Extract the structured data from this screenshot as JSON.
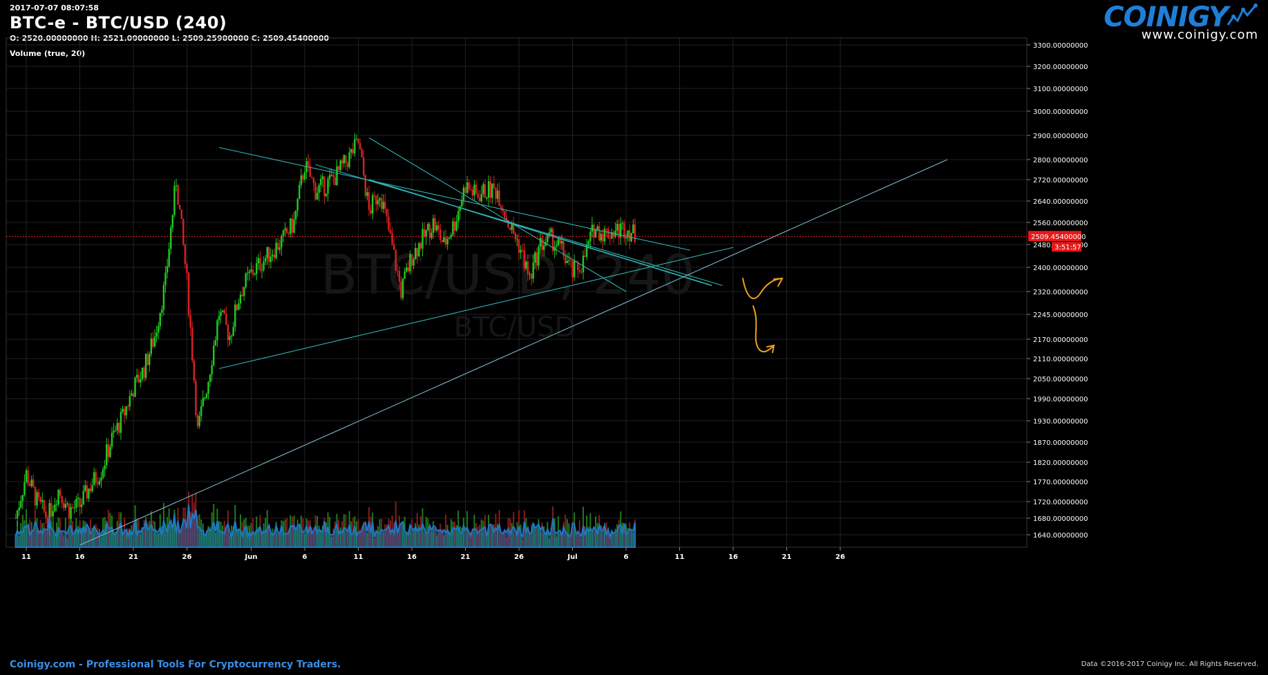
{
  "header": {
    "timestamp": "2017-07-07 08:07:58",
    "title": "BTC-e - BTC/USD (240)",
    "ohlc": "O: 2520.00000000 H: 2521.00000000 L: 2509.25900000 C: 2509.45400000",
    "volume_label": "Volume (true, 20)"
  },
  "logo": {
    "wordmark": "COINIGY",
    "url": "www.coinigy.com"
  },
  "footer": {
    "tagline": "Coinigy.com - Professional Tools For Cryptocurrency Traders.",
    "copyright": "Data ©2016-2017 Coinigy Inc. All Rights Reserved."
  },
  "watermark": {
    "pair_large": "BTC/USD, 240",
    "pair_small": "BTC/USD"
  },
  "price_badge": {
    "value": "2509.45400000",
    "countdown": "3:51:57"
  },
  "colors": {
    "up": "#22cc22",
    "down": "#dd2222",
    "grid": "#222222",
    "trendline": "#2fb5b5",
    "support": "#7fb8cc",
    "price_line": "#ff2222",
    "annotation": "#f0a020",
    "volume_ma": "#1e78c8",
    "brand": "#1e7fd8"
  },
  "chart_data": {
    "type": "candlestick",
    "interval": "240",
    "y_ticks": [
      3300,
      3200,
      3100,
      3000,
      2900,
      2800,
      2720,
      2640,
      2560,
      2480,
      2400,
      2320,
      2245,
      2170,
      2110,
      2050,
      1990,
      1930,
      1870,
      1820,
      1770,
      1720,
      1680,
      1640
    ],
    "x_ticks": [
      "11",
      "16",
      "21",
      "26",
      "Jun",
      "6",
      "11",
      "16",
      "21",
      "26",
      "Jul",
      "6",
      "11",
      "16",
      "21",
      "26"
    ],
    "last_price": 2509.454,
    "close_path": [
      [
        "May 10",
        1680
      ],
      [
        "May 11",
        1790
      ],
      [
        "May 12",
        1720
      ],
      [
        "May 13",
        1680
      ],
      [
        "May 14",
        1750
      ],
      [
        "May 15",
        1700
      ],
      [
        "May 16",
        1710
      ],
      [
        "May 17",
        1760
      ],
      [
        "May 18",
        1800
      ],
      [
        "May 19",
        1880
      ],
      [
        "May 20",
        1940
      ],
      [
        "May 21",
        2020
      ],
      [
        "May 22",
        2080
      ],
      [
        "May 23",
        2180
      ],
      [
        "May 24",
        2350
      ],
      [
        "May 25",
        2720
      ],
      [
        "May 26",
        2350
      ],
      [
        "May 27",
        1900
      ],
      [
        "May 28",
        2050
      ],
      [
        "May 29",
        2250
      ],
      [
        "May 30",
        2180
      ],
      [
        "May 31",
        2320
      ],
      [
        "Jun 1",
        2380
      ],
      [
        "Jun 2",
        2420
      ],
      [
        "Jun 3",
        2460
      ],
      [
        "Jun 4",
        2500
      ],
      [
        "Jun 5",
        2560
      ],
      [
        "Jun 6",
        2780
      ],
      [
        "Jun 7",
        2680
      ],
      [
        "Jun 8",
        2700
      ],
      [
        "Jun 9",
        2740
      ],
      [
        "Jun 10",
        2800
      ],
      [
        "Jun 11",
        2870
      ],
      [
        "Jun 12",
        2600
      ],
      [
        "Jun 13",
        2680
      ],
      [
        "Jun 14",
        2500
      ],
      [
        "Jun 15",
        2320
      ],
      [
        "Jun 16",
        2440
      ],
      [
        "Jun 17",
        2500
      ],
      [
        "Jun 18",
        2560
      ],
      [
        "Jun 19",
        2480
      ],
      [
        "Jun 20",
        2560
      ],
      [
        "Jun 21",
        2700
      ],
      [
        "Jun 22",
        2660
      ],
      [
        "Jun 23",
        2680
      ],
      [
        "Jun 24",
        2680
      ],
      [
        "Jun 25",
        2560
      ],
      [
        "Jun 26",
        2480
      ],
      [
        "Jun 27",
        2360
      ],
      [
        "Jun 28",
        2480
      ],
      [
        "Jun 29",
        2500
      ],
      [
        "Jun 30",
        2460
      ],
      [
        "Jul 1",
        2380
      ],
      [
        "Jul 2",
        2420
      ],
      [
        "Jul 3",
        2540
      ],
      [
        "Jul 4",
        2520
      ],
      [
        "Jul 5",
        2530
      ],
      [
        "Jul 6",
        2540
      ],
      [
        "Jul 7",
        2509
      ]
    ],
    "trendlines": [
      {
        "from": [
          "May 29",
          2850
        ],
        "to": [
          "Jul 12",
          2460
        ]
      },
      {
        "from": [
          "Jun 12",
          2890
        ],
        "to": [
          "Jul 6",
          2320
        ]
      },
      {
        "from": [
          "Jun 12",
          2720
        ],
        "to": [
          "Jul 14",
          2340
        ]
      },
      {
        "from": [
          "Jun 7",
          2780
        ],
        "to": [
          "Jul 15",
          2340
        ]
      },
      {
        "from": [
          "May 29",
          2080
        ],
        "to": [
          "Jul 16",
          2470
        ]
      },
      {
        "from": [
          "May 16",
          1615
        ],
        "to": [
          "Aug 5",
          2800
        ]
      }
    ]
  }
}
